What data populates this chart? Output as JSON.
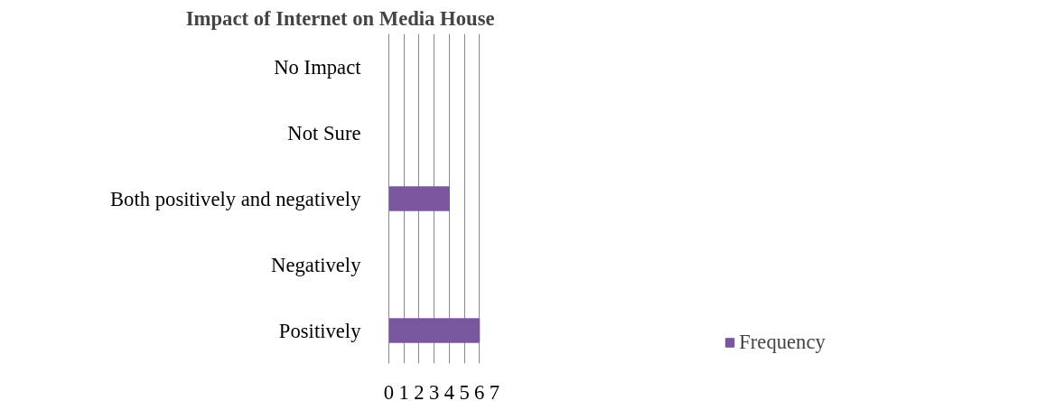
{
  "chart_data": {
    "type": "bar",
    "orientation": "horizontal",
    "title": "Impact of Internet on Media House",
    "categories": [
      "No Impact",
      "Not Sure",
      "Both positively and negatively",
      "Negatively",
      "Positively"
    ],
    "series": [
      {
        "name": "Frequency",
        "color": "#7a569e",
        "values": [
          0,
          0,
          4,
          0,
          6
        ]
      }
    ],
    "xlim": [
      0,
      7
    ],
    "xticks": [
      0,
      1,
      2,
      3,
      4,
      5,
      6,
      7
    ],
    "grid": "x",
    "legend": "right"
  }
}
